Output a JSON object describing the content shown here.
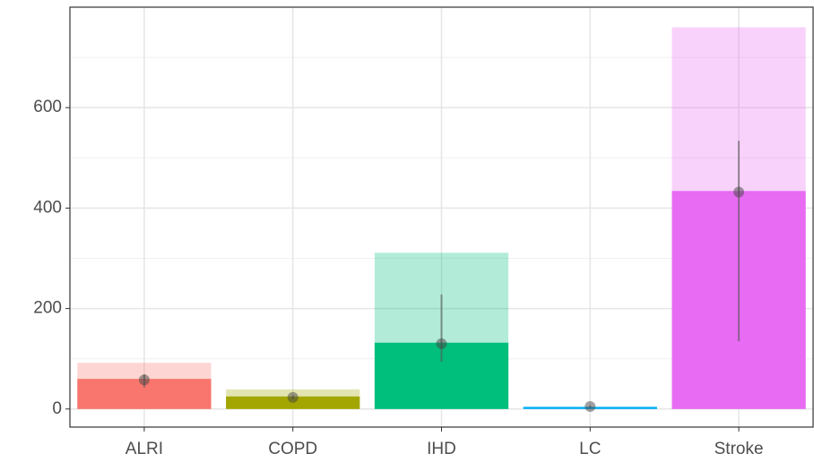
{
  "chart_data": {
    "type": "bar",
    "categories": [
      "ALRI",
      "COPD",
      "IHD",
      "LC",
      "Stroke"
    ],
    "colors": [
      "#F8766D",
      "#A3A500",
      "#00BF7D",
      "#00B0F6",
      "#E76BF3"
    ],
    "upper_values": [
      92,
      39,
      311,
      5,
      760
    ],
    "values": [
      60,
      25,
      132,
      4,
      434
    ],
    "point": [
      58,
      23,
      130,
      5,
      432
    ],
    "error_low": [
      43,
      19,
      94,
      3,
      135
    ],
    "error_high": [
      69,
      27,
      228,
      7,
      534
    ],
    "ylim": [
      -36,
      800
    ],
    "yticks": [
      0,
      200,
      400,
      600
    ],
    "yminor": [
      100,
      300,
      500,
      700
    ],
    "grid": true
  }
}
